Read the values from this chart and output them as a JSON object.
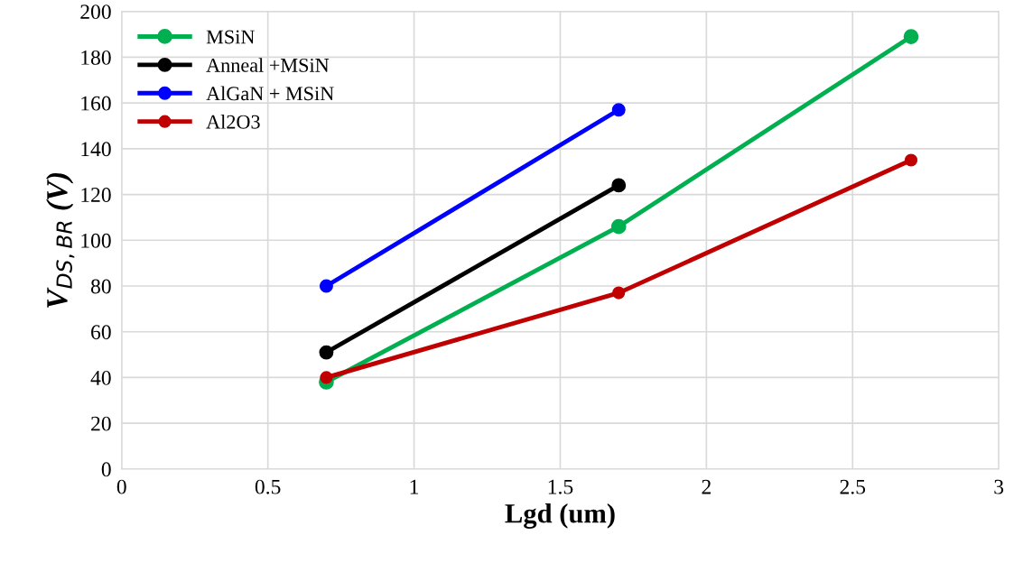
{
  "chart_data": {
    "type": "line",
    "xlabel": "Lgd (um)",
    "ylabel": "V$_{DS,BR}$ (V)",
    "xlim": [
      0,
      3
    ],
    "xticks": [
      0,
      0.5,
      1,
      1.5,
      2,
      2.5,
      3
    ],
    "ylim": [
      0,
      200
    ],
    "yticks": [
      0,
      20,
      40,
      60,
      80,
      100,
      120,
      140,
      160,
      180,
      200
    ],
    "grid": true,
    "legend": "top left",
    "marker": "circle",
    "line_style": "solid",
    "series": [
      {
        "name": "MSiN",
        "color": "#00b050",
        "x": [
          0.7,
          1.7,
          2.7
        ],
        "values": [
          38,
          106,
          189
        ]
      },
      {
        "name": "Anneal +MSiN",
        "color": "#000000",
        "x": [
          0.7,
          1.7
        ],
        "values": [
          51,
          124
        ]
      },
      {
        "name": "AlGaN + MSiN",
        "color": "#0000ff",
        "x": [
          0.7,
          1.7
        ],
        "values": [
          80,
          157
        ]
      },
      {
        "name": "Al2O3",
        "color": "#c00000",
        "x": [
          0.7,
          1.7,
          2.7
        ],
        "values": [
          40,
          77,
          135
        ]
      }
    ]
  }
}
